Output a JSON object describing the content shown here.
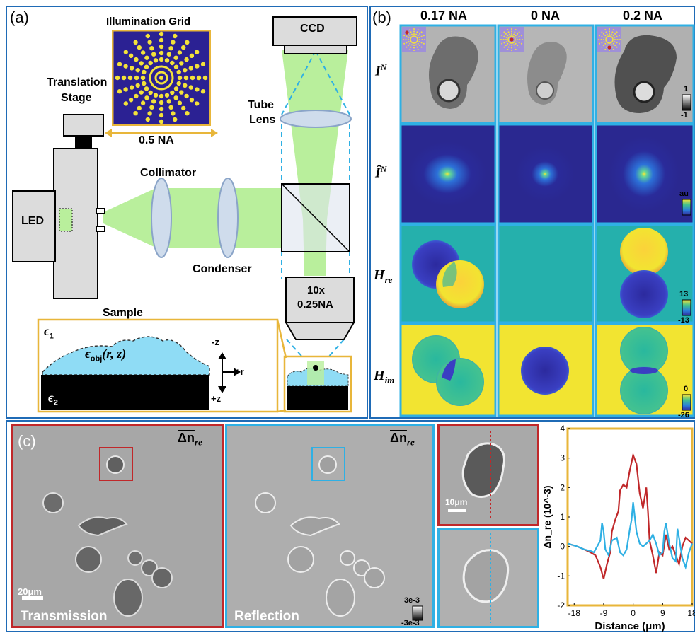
{
  "panel_a": {
    "label": "(a)",
    "illumination_grid_title": "Illumination Grid",
    "grid_na": "0.5 NA",
    "translation_stage": [
      "Translation",
      "Stage"
    ],
    "led": "LED",
    "collimator": "Collimator",
    "condenser": "Condenser",
    "ccd": "CCD",
    "tube_lens": [
      "Tube",
      "Lens"
    ],
    "objective": [
      "10x",
      "0.25NA"
    ],
    "sample": "Sample",
    "eps1": "ϵ",
    "eps1_sub": "1",
    "eps2": "ϵ",
    "eps2_sub": "2",
    "eps_obj": "ϵ",
    "eps_obj_sub": "obj",
    "eps_obj_args": "(r, z)",
    "axis_minus_z": "-z",
    "axis_plus_z": "+z",
    "axis_plus_r": "+r"
  },
  "panel_b": {
    "label": "(b)",
    "columns": [
      "0.17 NA",
      "0 NA",
      "0.2 NA"
    ],
    "rows": [
      {
        "sym": "I",
        "sup": "N",
        "sub": "",
        "cbar_top": "1",
        "cbar_bottom": "-1"
      },
      {
        "sym": "Î",
        "sup": "N",
        "sub": "",
        "cbar_top": "au",
        "cbar_bottom": ""
      },
      {
        "sym": "H",
        "sup": "",
        "sub": "re",
        "cbar_top": "13",
        "cbar_bottom": "-13"
      },
      {
        "sym": "H",
        "sup": "",
        "sub": "im",
        "cbar_top": "0",
        "cbar_bottom": "-26"
      }
    ]
  },
  "panel_c": {
    "label": "(c)",
    "corner_label": "Δn",
    "corner_sub": "re",
    "transmission": "Transmission",
    "reflection": "Reflection",
    "scale_20": "20μm",
    "scale_10": "10μm",
    "cbar_top": "3e-3",
    "cbar_bottom": "-3e-3"
  },
  "colors": {
    "frame_blue": "#1f6bb6",
    "red": "#c0282a",
    "cyan": "#2fb0e4",
    "gold": "#e8b63a",
    "grid_bg": "#2b2193",
    "grid_dot": "#f3e23a",
    "beam_green": "#b9ef9c"
  },
  "chart_data": {
    "type": "line",
    "xlabel": "Distance (μm)",
    "ylabel": "Δn_re (10^-3)",
    "xlim": [
      -20,
      18
    ],
    "ylim": [
      -2,
      4
    ],
    "xticks": [
      -18,
      -9,
      0,
      9,
      18
    ],
    "yticks": [
      -2,
      -1,
      0,
      1,
      2,
      3,
      4
    ],
    "series": [
      {
        "color": "#c0282a",
        "x": [
          -20,
          -17,
          -15,
          -13,
          -11.5,
          -10,
          -9,
          -8,
          -7,
          -6.5,
          -5.5,
          -4.5,
          -4,
          -3,
          -2,
          -1,
          0,
          1,
          2,
          3,
          4,
          4.5,
          5,
          6,
          7,
          8,
          9,
          10,
          11,
          12,
          13,
          14,
          15,
          16,
          17,
          18
        ],
        "y": [
          0.1,
          0,
          -0.1,
          -0.2,
          -0.3,
          -0.7,
          -1.1,
          -0.6,
          -0.2,
          0.5,
          0.9,
          1.2,
          1.9,
          2.1,
          2.0,
          2.6,
          3.1,
          2.8,
          1.8,
          1.3,
          2.0,
          1.2,
          0.2,
          -0.3,
          -0.9,
          -0.2,
          -0.3,
          0.4,
          -0.1,
          0.0,
          -0.3,
          -0.6,
          0.0,
          0.3,
          0.2,
          0.1
        ]
      },
      {
        "color": "#2fb0e4",
        "x": [
          -20,
          -17,
          -15,
          -13,
          -12,
          -11,
          -10,
          -9.5,
          -9,
          -8.5,
          -7.5,
          -6.5,
          -5,
          -4,
          -3,
          -2,
          -1,
          -0.5,
          0,
          0.5,
          1,
          2,
          3,
          4,
          5,
          6,
          7,
          8,
          9,
          9.5,
          10,
          11,
          12,
          13,
          13.5,
          14,
          15,
          16,
          17,
          18
        ],
        "y": [
          0.1,
          0,
          -0.1,
          -0.15,
          -0.2,
          0.0,
          0.2,
          0.8,
          0.5,
          -0.1,
          -0.3,
          0.2,
          0.3,
          -0.2,
          -0.3,
          -0.1,
          0.6,
          0.9,
          1.5,
          1.0,
          0.5,
          0.1,
          0.0,
          0.1,
          0.2,
          0.4,
          0.1,
          -0.3,
          -0.2,
          0.5,
          0.8,
          0.1,
          -0.4,
          -0.5,
          0.6,
          0.3,
          -0.4,
          -0.7,
          -0.2,
          0.1
        ]
      }
    ]
  }
}
